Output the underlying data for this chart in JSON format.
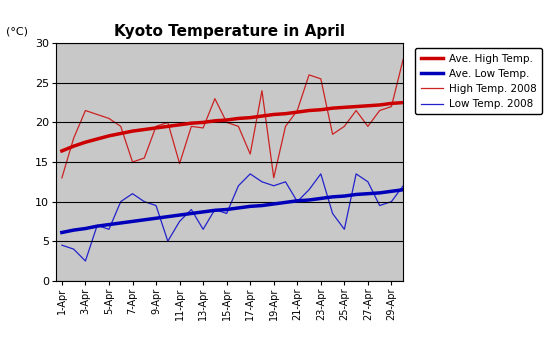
{
  "title": "Kyoto Temperature in April",
  "ylabel": "(°C)",
  "ylim": [
    0,
    30
  ],
  "yticks": [
    0,
    5,
    10,
    15,
    20,
    25,
    30
  ],
  "days": [
    1,
    2,
    3,
    4,
    5,
    6,
    7,
    8,
    9,
    10,
    11,
    12,
    13,
    14,
    15,
    16,
    17,
    18,
    19,
    20,
    21,
    22,
    23,
    24,
    25,
    26,
    27,
    28,
    29,
    30
  ],
  "xtick_days": [
    1,
    3,
    5,
    7,
    9,
    11,
    13,
    15,
    17,
    19,
    21,
    23,
    25,
    27,
    29
  ],
  "xtick_labels": [
    "1-Apr",
    "3-Apr",
    "5-Apr",
    "7-Apr",
    "9-Apr",
    "11-Apr",
    "13-Apr",
    "15-Apr",
    "17-Apr",
    "19-Apr",
    "21-Apr",
    "23-Apr",
    "25-Apr",
    "27-Apr",
    "29-Apr"
  ],
  "ave_high": [
    16.4,
    17.0,
    17.5,
    17.9,
    18.3,
    18.6,
    18.9,
    19.1,
    19.3,
    19.5,
    19.7,
    19.9,
    20.0,
    20.2,
    20.3,
    20.5,
    20.6,
    20.8,
    21.0,
    21.1,
    21.3,
    21.5,
    21.6,
    21.8,
    21.9,
    22.0,
    22.1,
    22.2,
    22.4,
    22.5
  ],
  "ave_low": [
    6.1,
    6.4,
    6.6,
    6.9,
    7.1,
    7.3,
    7.5,
    7.7,
    7.9,
    8.1,
    8.3,
    8.5,
    8.7,
    8.9,
    9.0,
    9.2,
    9.4,
    9.5,
    9.7,
    9.9,
    10.1,
    10.2,
    10.4,
    10.6,
    10.7,
    10.9,
    11.0,
    11.1,
    11.3,
    11.5
  ],
  "high_2008": [
    13.0,
    18.0,
    21.5,
    21.0,
    20.5,
    19.5,
    15.0,
    15.5,
    19.5,
    20.0,
    14.8,
    19.5,
    19.3,
    23.0,
    20.0,
    19.5,
    16.0,
    24.0,
    13.0,
    19.5,
    21.5,
    26.0,
    25.5,
    18.5,
    19.5,
    21.5,
    19.5,
    21.5,
    22.0,
    28.0
  ],
  "low_2008": [
    4.5,
    4.0,
    2.5,
    7.0,
    6.5,
    10.0,
    11.0,
    10.0,
    9.5,
    5.0,
    7.5,
    9.0,
    6.5,
    9.0,
    8.5,
    12.0,
    13.5,
    12.5,
    12.0,
    12.5,
    10.0,
    11.5,
    13.5,
    8.5,
    6.5,
    13.5,
    12.5,
    9.5,
    10.0,
    12.0
  ],
  "color_ave_high": "#cc0000",
  "color_ave_low": "#0000bb",
  "color_high_2008": "#cc2222",
  "color_low_2008": "#2222cc",
  "bg_color": "#c8c8c8",
  "legend_entries": [
    "Ave. High Temp.",
    "Ave. Low Temp.",
    "High Temp. 2008",
    "Low Temp. 2008"
  ],
  "fig_width": 5.6,
  "fig_height": 3.6,
  "dpi": 100
}
